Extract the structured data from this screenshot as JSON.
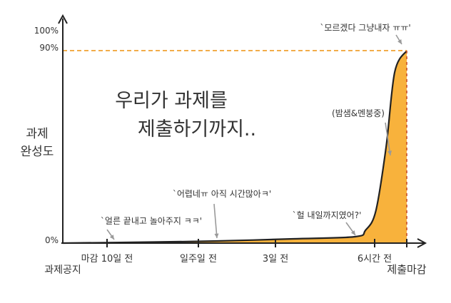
{
  "chart_data": {
    "type": "area",
    "title": "우리가 과제를\n제출하기까지..",
    "ylabel": "과제\n완성도",
    "ylim": [
      0,
      100
    ],
    "y_ticks": [
      "0%",
      "90%",
      "100%"
    ],
    "reference_line": {
      "value": 90,
      "label": "90%",
      "color": "#f0a030"
    },
    "x_start_label": "과제공지",
    "x_end_label": "제출마감",
    "x_ticks": [
      {
        "label": "마감 10일 전",
        "color": "#333333"
      },
      {
        "label": "일주일 전",
        "color": "#333333"
      },
      {
        "label": "3일 전",
        "color": "#c8502a"
      },
      {
        "label": "6시간 전",
        "color": "#c8502a"
      }
    ],
    "series": [
      {
        "values": [
          [
            0,
            0
          ],
          [
            26,
            0.5
          ],
          [
            45,
            1
          ],
          [
            67,
            2
          ],
          [
            85,
            3
          ],
          [
            88,
            6
          ],
          [
            91,
            15
          ],
          [
            94,
            45
          ],
          [
            96.5,
            80
          ],
          [
            100,
            90
          ]
        ]
      }
    ],
    "annotations": [
      {
        "text": "`얼른 끝내고 놀아주지 ㅋㅋ'",
        "x": 12,
        "y": 0.4
      },
      {
        "text": "`어렵네ㅠ 아직 시간많아ㅋ'",
        "x": 44,
        "y": 1
      },
      {
        "text": "`헐 내일까지였어?'",
        "x": 86,
        "y": 3
      },
      {
        "text": "(밤샘&멘붕중)",
        "x": 95,
        "y": 60
      },
      {
        "text": "`모르겠다 그냥내자 ㅠㅠ'",
        "x": 100,
        "y": 90
      }
    ],
    "colors": {
      "fill": "#f8b23c",
      "line": "#222222",
      "ref_line": "#f0a030",
      "red_label": "#c8502a",
      "grey_arrow": "#9a9a9a"
    }
  }
}
